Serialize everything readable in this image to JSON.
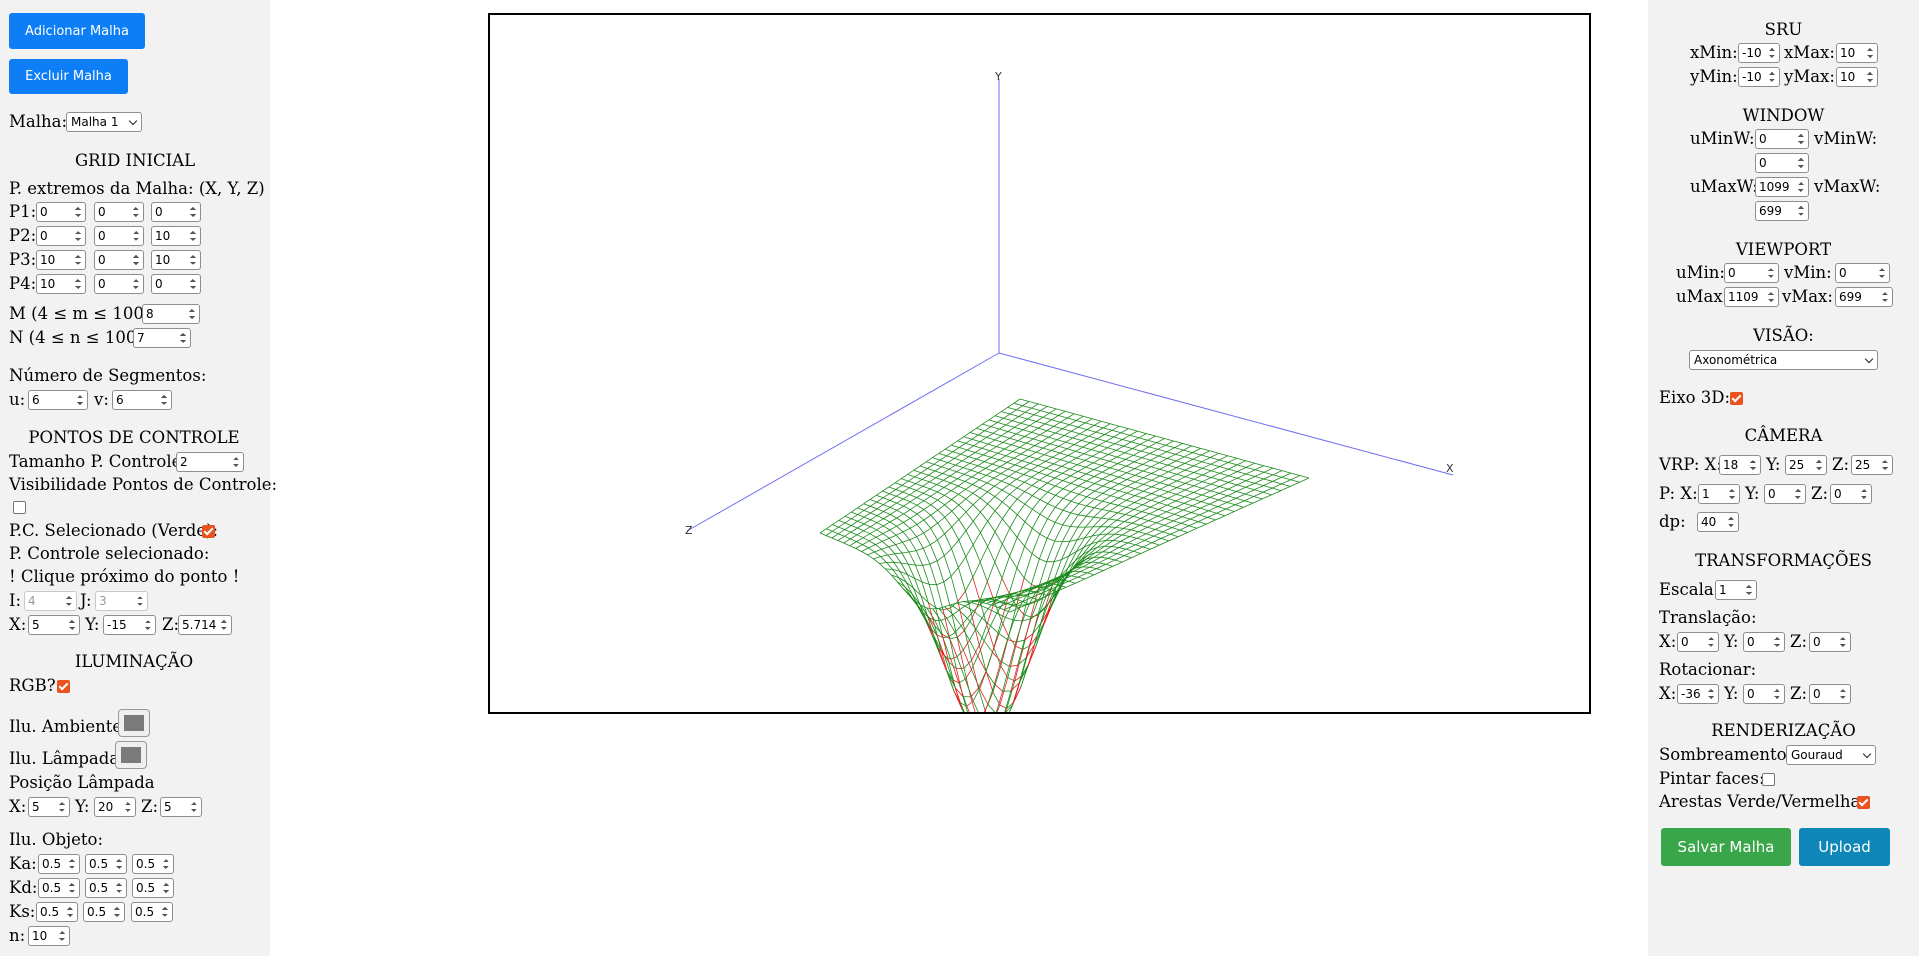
{
  "left": {
    "add_mesh": "Adicionar Malha",
    "delete_mesh": "Excluir Malha",
    "mesh_label": "Malha:",
    "mesh_select": "Malha 1",
    "grid_title": "GRID INICIAL",
    "extremes_label": "P. extremos da Malha: (X, Y, Z)",
    "points": [
      {
        "label": "P1:",
        "x": "0",
        "y": "0",
        "z": "0"
      },
      {
        "label": "P2:",
        "x": "0",
        "y": "0",
        "z": "10"
      },
      {
        "label": "P3:",
        "x": "10",
        "y": "0",
        "z": "10"
      },
      {
        "label": "P4:",
        "x": "10",
        "y": "0",
        "z": "0"
      }
    ],
    "m_label": "M (4 ≤ m ≤ 100):",
    "m_value": "8",
    "n_label": "N (4 ≤ n ≤ 100):",
    "n_value": "7",
    "segments_label": "Número de Segmentos:",
    "u_label": "u:",
    "u_value": "6",
    "v_label": "v:",
    "v_value": "6",
    "control_title": "PONTOS DE CONTROLE",
    "cp_size_label": "Tamanho P. Controle:",
    "cp_size_value": "2",
    "cp_visibility_label": "Visibilidade Pontos de Controle:",
    "cp_visibility_checked": false,
    "cp_selected_green_label": "P.C. Selecionado (Verde):",
    "cp_selected_green_checked": true,
    "cp_selected_label": "P. Controle selecionado:",
    "cp_hint": "! Clique próximo do ponto !",
    "i_label": "I:",
    "i_value": "4",
    "j_label": "J:",
    "j_value": "3",
    "sel_x_label": "X:",
    "sel_x_value": "5",
    "sel_y_label": "Y:",
    "sel_y_value": "-15",
    "sel_z_label": "Z:",
    "sel_z_value": "5.714",
    "lighting_title": "ILUMINAÇÃO",
    "rgb_label": "RGB?",
    "rgb_checked": true,
    "ambient_label": "Ilu. Ambiente",
    "lamp_label": "Ilu. Lâmpada",
    "lamp_color": "#7a7a7a",
    "lamp_pos_label": "Posição Lâmpada",
    "lamp_x_label": "X:",
    "lamp_x": "5",
    "lamp_y_label": "Y:",
    "lamp_y": "20",
    "lamp_z_label": "Z:",
    "lamp_z": "5",
    "object_label": "Ilu. Objeto:",
    "ka_label": "Ka:",
    "ka": [
      "0.5",
      "0.5",
      "0.5"
    ],
    "kd_label": "Kd:",
    "kd": [
      "0.5",
      "0.5",
      "0.5"
    ],
    "ks_label": "Ks:",
    "ks": [
      "0.5",
      "0.5",
      "0.5"
    ],
    "n_exp_label": "n:",
    "n_exp": "10"
  },
  "viewport_canvas": {
    "axis_labels": {
      "x": "X",
      "y": "Y",
      "z": "Z"
    },
    "axis_color": "#6f6ff0",
    "mesh_color": "#1a8a1a",
    "mesh_selected_color": "#e02020"
  },
  "right": {
    "sru_title": "SRU",
    "xmin_label": "xMin:",
    "xmin": "-10",
    "xmax_label": "xMax:",
    "xmax": "10",
    "ymin_label": "yMin:",
    "ymin": "-10",
    "ymax_label": "yMax:",
    "ymax": "10",
    "window_title": "WINDOW",
    "uminw_label": "uMinW:",
    "uminw": "0",
    "vminw_label": "vMinW:",
    "vminw": "0",
    "umaxw_label": "uMaxW:",
    "umaxw": "1099",
    "vmaxw_label": "vMaxW:",
    "vmaxw": "699",
    "viewport_title": "VIEWPORT",
    "umin_label": "uMin:",
    "umin": "0",
    "vmin_label": "vMin:",
    "vmin": "0",
    "umax_label": "uMax:",
    "umax": "1109",
    "vmax_label": "vMax:",
    "vmax": "699",
    "view_title": "VISÃO:",
    "view_select": "Axonométrica",
    "axis3d_label": "Eixo 3D:",
    "axis3d_checked": true,
    "camera_title": "CÂMERA",
    "vrp_label": "VRP: X:",
    "vrp_x": "18",
    "vrp_y_label": "Y:",
    "vrp_y": "25",
    "vrp_z_label": "Z:",
    "vrp_z": "25",
    "p_label": "P: X:",
    "p_x": "1",
    "p_y_label": "Y:",
    "p_y": "0",
    "p_z_label": "Z:",
    "p_z": "0",
    "dp_label": "dp:",
    "dp": "40",
    "transform_title": "TRANSFORMAÇÕES",
    "scale_label": "Escala:",
    "scale": "1",
    "translate_label": "Translação:",
    "t_x_label": "X:",
    "t_x": "0",
    "t_y_label": "Y:",
    "t_y": "0",
    "t_z_label": "Z:",
    "t_z": "0",
    "rotate_label": "Rotacionar:",
    "r_x_label": "X:",
    "r_x": "-36",
    "r_y_label": "Y:",
    "r_y": "0",
    "r_z_label": "Z:",
    "r_z": "0",
    "render_title": "RENDERIZAÇÃO",
    "shading_label": "Sombreamento:",
    "shading_select": "Gouraud",
    "paint_faces_label": "Pintar faces:",
    "paint_faces_checked": false,
    "edges_label": "Arestas Verde/Vermelha:",
    "edges_checked": true,
    "save_button": "Salvar Malha",
    "upload_button": "Upload"
  }
}
